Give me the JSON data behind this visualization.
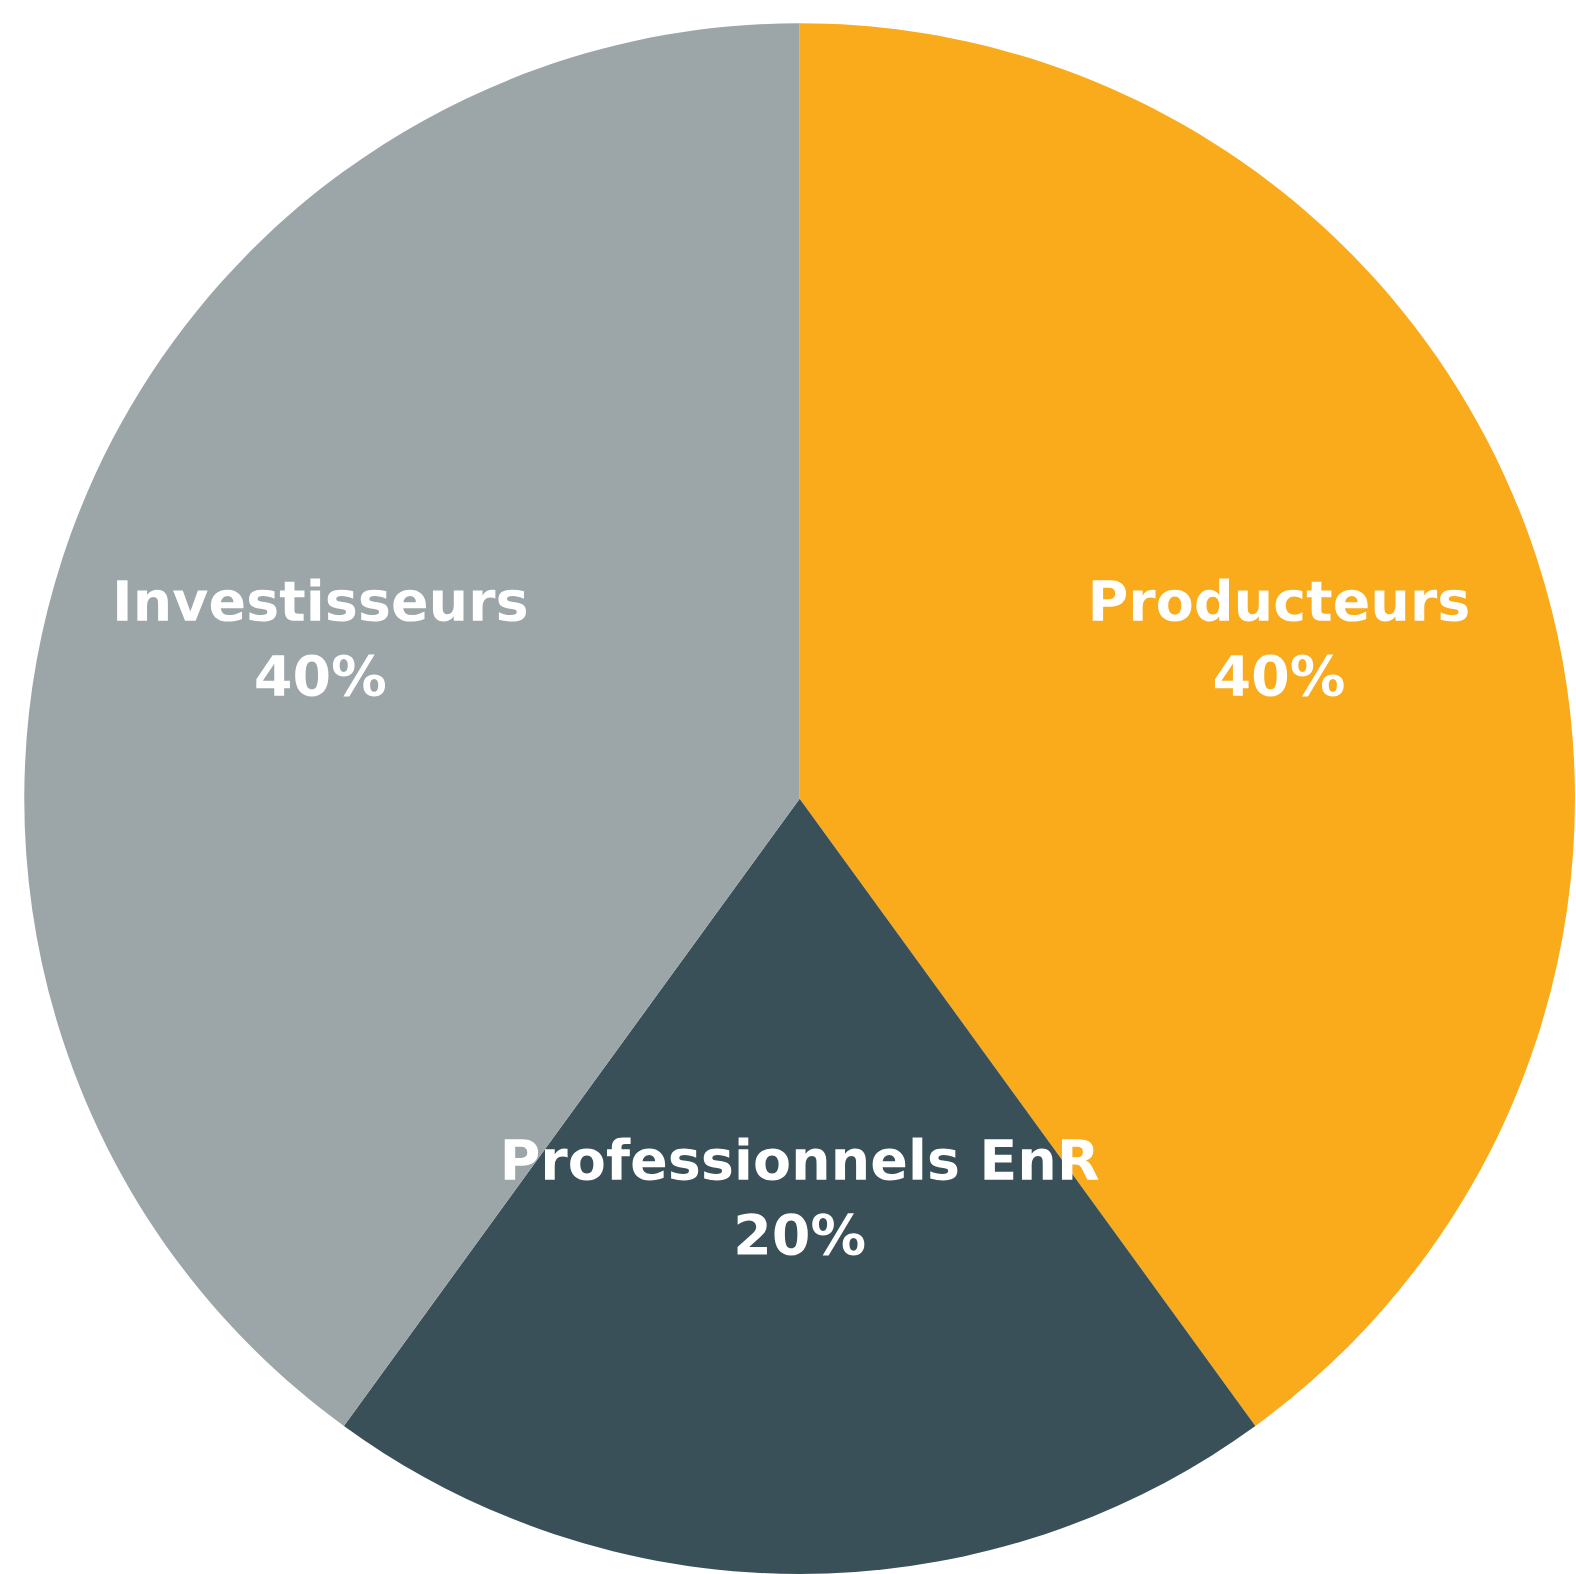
{
  "chart_data": {
    "type": "pie",
    "categories": [
      "Producteurs",
      "Professionnels EnR",
      "Investisseurs"
    ],
    "values": [
      40,
      20,
      40
    ],
    "value_labels": [
      "40%",
      "20%",
      "40%"
    ],
    "colors": [
      "#f9ab1b",
      "#3a5058",
      "#9ca6a9"
    ],
    "legend": false
  }
}
